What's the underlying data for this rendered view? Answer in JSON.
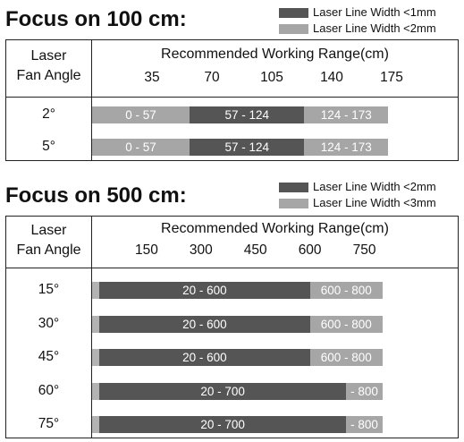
{
  "chart_data": [
    {
      "type": "bar",
      "title": "Focus on 100 cm:",
      "legend": [
        {
          "label": "Laser Line Width <1mm",
          "color": "#555555"
        },
        {
          "label": "Laser Line Width <2mm",
          "color": "#a6a6a6"
        }
      ],
      "angle_header": [
        "Laser",
        "Fan Angle"
      ],
      "range_header": "Recommended Working Range(cm)",
      "ticks": [
        35,
        70,
        105,
        140,
        175
      ],
      "xlim": [
        0,
        175
      ],
      "rows": [
        {
          "label": "2°",
          "segments": [
            {
              "start": 0,
              "end": 57,
              "text": "0 - 57",
              "color": "#a6a6a6"
            },
            {
              "start": 57,
              "end": 124,
              "text": "57 - 124",
              "color": "#555555"
            },
            {
              "start": 124,
              "end": 173,
              "text": "124 - 173",
              "color": "#a6a6a6"
            }
          ]
        },
        {
          "label": "5°",
          "segments": [
            {
              "start": 0,
              "end": 57,
              "text": "0 - 57",
              "color": "#a6a6a6"
            },
            {
              "start": 57,
              "end": 124,
              "text": "57 - 124",
              "color": "#555555"
            },
            {
              "start": 124,
              "end": 173,
              "text": "124 - 173",
              "color": "#a6a6a6"
            }
          ]
        }
      ]
    },
    {
      "type": "bar",
      "title": "Focus on 500 cm:",
      "legend": [
        {
          "label": "Laser Line Width <2mm",
          "color": "#555555"
        },
        {
          "label": "Laser Line Width <3mm",
          "color": "#a6a6a6"
        }
      ],
      "angle_header": [
        "Laser",
        "Fan Angle"
      ],
      "range_header": "Recommended Working Range(cm)",
      "ticks": [
        150,
        300,
        450,
        600,
        750
      ],
      "xlim": [
        0,
        825
      ],
      "rows": [
        {
          "label": "15°",
          "segments": [
            {
              "start": 0,
              "end": 20,
              "text": "",
              "color": "#b3b3b3"
            },
            {
              "start": 20,
              "end": 600,
              "text": "20 - 600",
              "color": "#555555"
            },
            {
              "start": 600,
              "end": 800,
              "text": "600 - 800",
              "color": "#a6a6a6"
            }
          ]
        },
        {
          "label": "30°",
          "segments": [
            {
              "start": 0,
              "end": 20,
              "text": "",
              "color": "#b3b3b3"
            },
            {
              "start": 20,
              "end": 600,
              "text": "20 - 600",
              "color": "#555555"
            },
            {
              "start": 600,
              "end": 800,
              "text": "600 - 800",
              "color": "#a6a6a6"
            }
          ]
        },
        {
          "label": "45°",
          "segments": [
            {
              "start": 0,
              "end": 20,
              "text": "",
              "color": "#b3b3b3"
            },
            {
              "start": 20,
              "end": 600,
              "text": "20 - 600",
              "color": "#555555"
            },
            {
              "start": 600,
              "end": 800,
              "text": "600 - 800",
              "color": "#a6a6a6"
            }
          ]
        },
        {
          "label": "60°",
          "segments": [
            {
              "start": 0,
              "end": 20,
              "text": "",
              "color": "#b3b3b3"
            },
            {
              "start": 20,
              "end": 700,
              "text": "20 - 700",
              "color": "#555555"
            },
            {
              "start": 700,
              "end": 800,
              "text": "- 800",
              "color": "#a6a6a6"
            }
          ]
        },
        {
          "label": "75°",
          "segments": [
            {
              "start": 0,
              "end": 20,
              "text": "",
              "color": "#b3b3b3"
            },
            {
              "start": 20,
              "end": 700,
              "text": "20 - 700",
              "color": "#555555"
            },
            {
              "start": 700,
              "end": 800,
              "text": "- 800",
              "color": "#a6a6a6"
            }
          ]
        }
      ]
    }
  ]
}
